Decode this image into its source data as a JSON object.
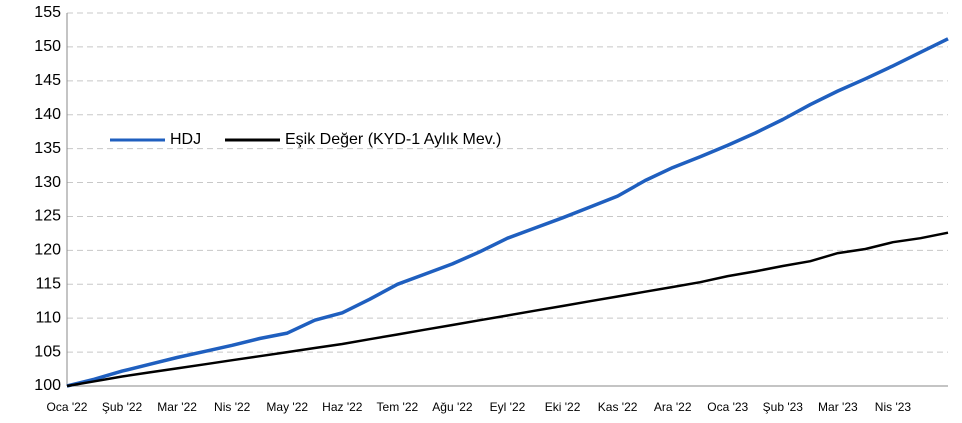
{
  "chart_data": {
    "type": "line",
    "categories": [
      "Oca '22",
      null,
      "Şub '22",
      null,
      "Mar '22",
      null,
      "Nis '22",
      null,
      "May '22",
      null,
      "Haz '22",
      null,
      "Tem '22",
      null,
      "Ağu '22",
      null,
      "Eyl '22",
      null,
      "Eki '22",
      null,
      "Kas '22",
      null,
      "Ara '22",
      null,
      "Oca '23",
      null,
      "Şub '23",
      null,
      "Mar '23",
      null,
      "Nis '23",
      null,
      null
    ],
    "series": [
      {
        "name": "HDJ",
        "color": "#1f5fbf",
        "values": [
          100,
          101,
          102.2,
          103.2,
          104.2,
          105.1,
          106,
          107,
          107.8,
          109.7,
          110.8,
          112.8,
          115,
          116.5,
          118,
          119.8,
          121.8,
          123.3,
          124.8,
          126.4,
          128,
          130.3,
          132.2,
          133.8,
          135.5,
          137.3,
          139.3,
          141.5,
          143.5,
          145.3,
          147.2,
          149.2,
          151.2
        ]
      },
      {
        "name": "Eşik Değer (KYD-1 Aylık Mev.)",
        "color": "#000000",
        "values": [
          100,
          100.7,
          101.4,
          102.0,
          102.6,
          103.2,
          103.8,
          104.4,
          105.0,
          105.6,
          106.2,
          106.9,
          107.6,
          108.3,
          109.0,
          109.7,
          110.4,
          111.1,
          111.8,
          112.5,
          113.2,
          113.9,
          114.6,
          115.3,
          116.2,
          116.9,
          117.7,
          118.4,
          119.6,
          120.2,
          121.2,
          121.8,
          122.6
        ]
      }
    ],
    "ylim": [
      100,
      155
    ],
    "yticks": [
      100,
      105,
      110,
      115,
      120,
      125,
      130,
      135,
      140,
      145,
      150,
      155
    ],
    "grid": true,
    "legend": "left"
  }
}
